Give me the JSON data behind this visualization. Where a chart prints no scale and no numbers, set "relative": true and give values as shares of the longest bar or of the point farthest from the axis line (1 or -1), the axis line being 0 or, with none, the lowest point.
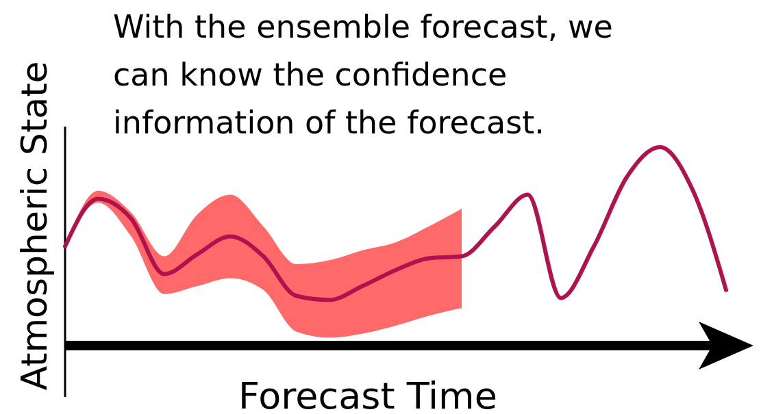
{
  "chart_data": {
    "type": "line",
    "relative": true,
    "xlabel": "Forecast Time",
    "ylabel": "Atmospheric State",
    "annotations": [
      "With the ensemble forecast, we can know the confidence information of the forecast."
    ],
    "categories": [
      null,
      null,
      null,
      null,
      null,
      null,
      null,
      null,
      null,
      null,
      null,
      null,
      null,
      null,
      null,
      null,
      null,
      null,
      null,
      null,
      null
    ],
    "series": [
      {
        "color": "#b0124e",
        "values": [
          0.5,
          0.74,
          0.64,
          0.36,
          0.46,
          0.55,
          0.45,
          0.25,
          0.23,
          0.3,
          0.38,
          0.44,
          0.45,
          0.6,
          0.76,
          0.24,
          0.5,
          0.85,
          1.0,
          0.78,
          0.28
        ],
        "upper": [
          0.5,
          0.78,
          0.67,
          0.45,
          0.66,
          0.76,
          0.6,
          0.41,
          0.43,
          0.48,
          0.52,
          0.6,
          0.69,
          null,
          null,
          null,
          null,
          null,
          null,
          null,
          null
        ],
        "lower": [
          0.5,
          0.72,
          0.55,
          0.26,
          0.3,
          0.34,
          0.28,
          0.07,
          0.04,
          0.06,
          0.1,
          0.15,
          0.19,
          null,
          null,
          null,
          null,
          null,
          null,
          null,
          null
        ]
      }
    ],
    "marker": "none",
    "line_style": "solid"
  }
}
